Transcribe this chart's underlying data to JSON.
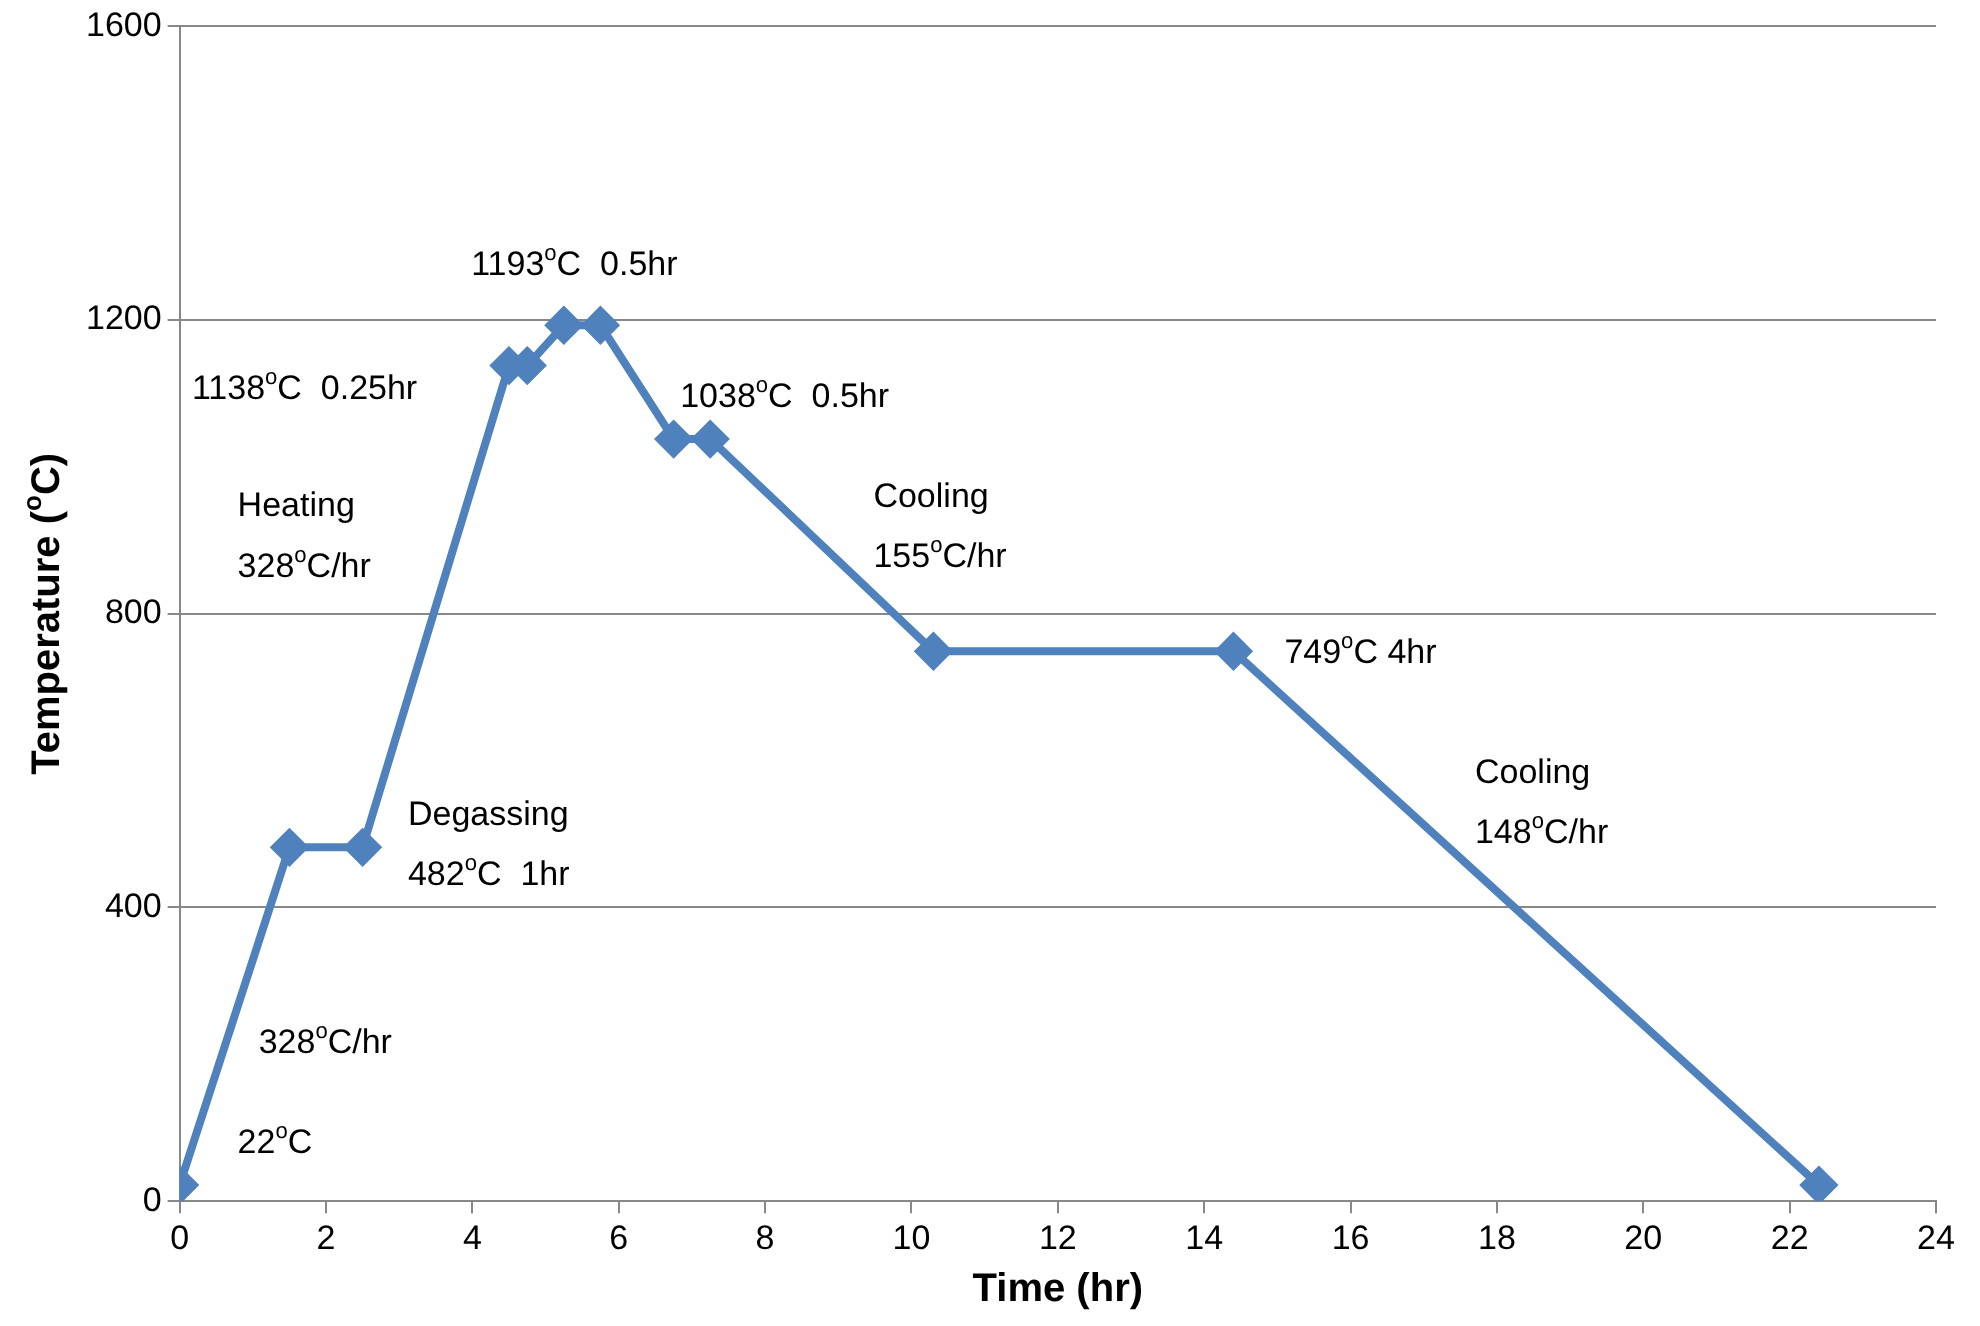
{
  "chart_data": {
    "type": "line",
    "xlabel": "Time (hr)",
    "ylabel": "Temperature ($^{o}$C)",
    "x": [
      0,
      1.5,
      2.5,
      4.5,
      4.75,
      5.25,
      5.75,
      6.75,
      7.25,
      10.3,
      14.4,
      22.4
    ],
    "series": [
      {
        "color": "#4f81bd",
        "values": [
          22,
          482,
          482,
          1138,
          1138,
          1193,
          1193,
          1038,
          1038,
          749,
          749,
          22
        ]
      }
    ],
    "xlim": [
      0,
      24
    ],
    "xticks": [
      0,
      2,
      4,
      6,
      8,
      10,
      12,
      14,
      16,
      18,
      20,
      22,
      24
    ],
    "ylim": [
      0,
      1600
    ],
    "yticks": [
      0,
      400,
      800,
      1200,
      1600
    ],
    "grid": "y",
    "legend": false,
    "marker": "diamond",
    "line_style": "solid",
    "annotations": [
      "22$^{o}$C",
      "328$^{o}$C/hr",
      "Degassing",
      "482$^{o}$C  1hr",
      "Heating",
      "328$^{o}$C/hr",
      "1138$^{o}$C  0.25hr",
      "1193$^{o}$C  0.5hr",
      "1038$^{o}$C  0.5hr",
      "Cooling",
      "155$^{o}$C/hr",
      "749$^{o}$C 4hr",
      "Cooling",
      "148$^{o}$C/hr"
    ]
  }
}
